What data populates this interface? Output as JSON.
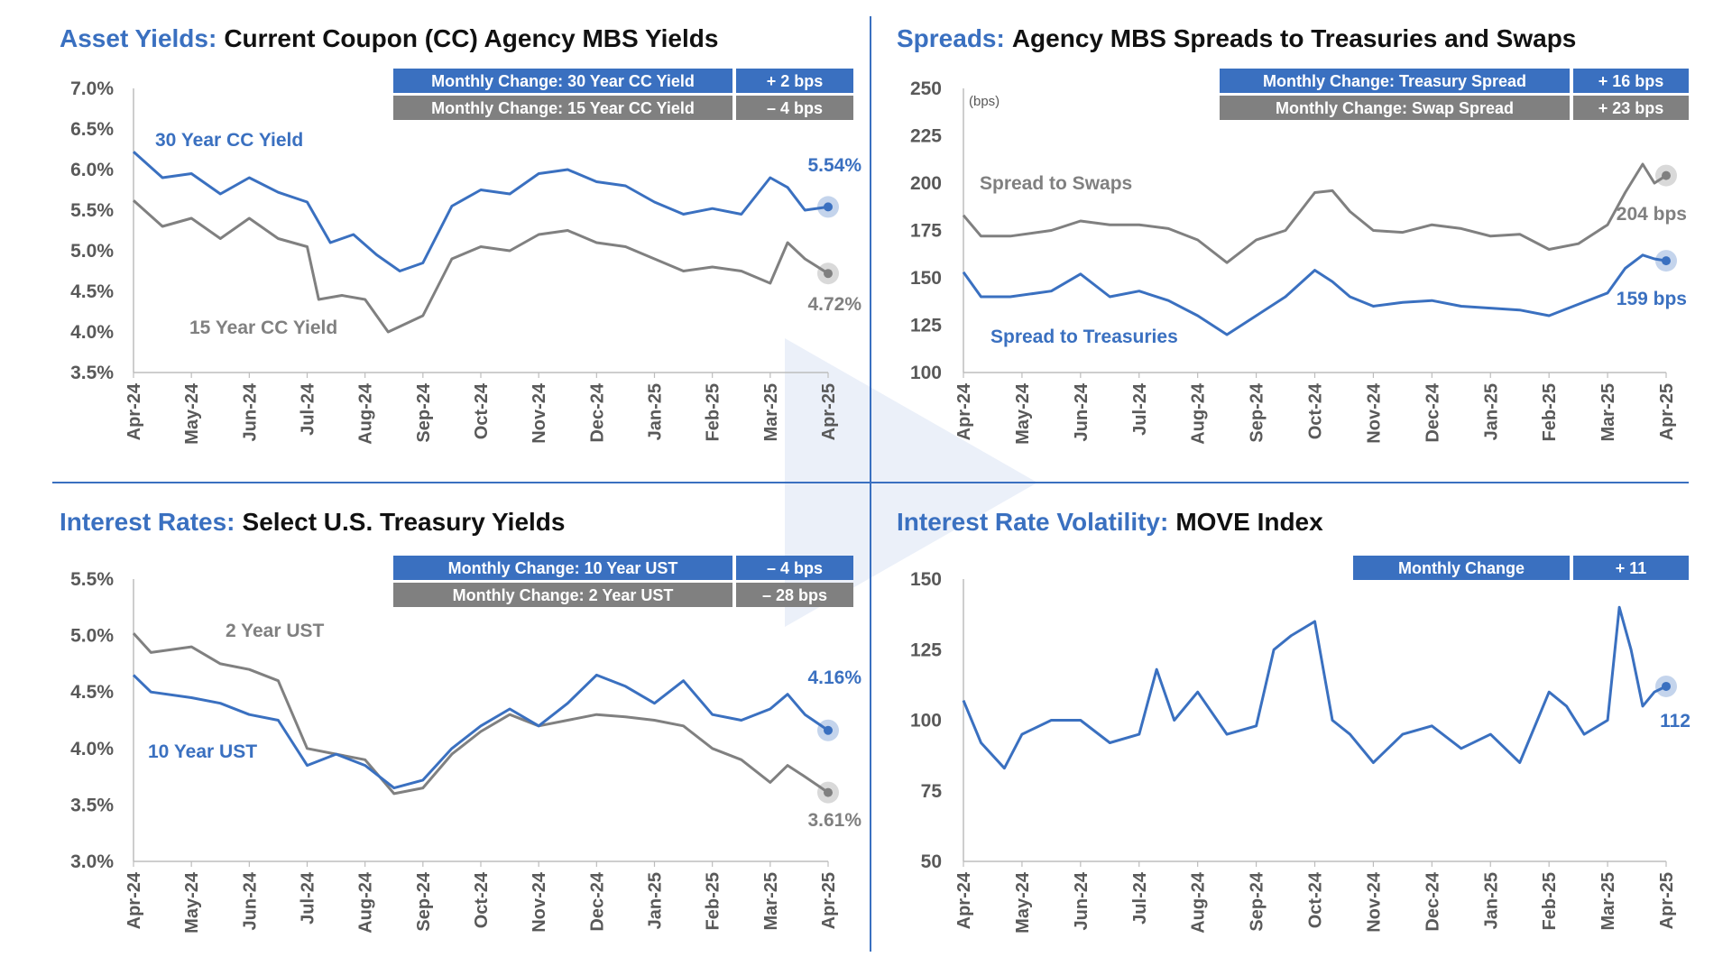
{
  "colors": {
    "blue": "#3A70C0",
    "gray": "#808080",
    "axis": "#bdbdbd",
    "tick_text": "#595959",
    "title_blue": "#3A70C0",
    "title_dark": "#111111"
  },
  "chart_data": [
    {
      "type": "line",
      "title_prefix": "Asset Yields:",
      "title": "Current Coupon (CC) Agency MBS Yields",
      "unit_note": "",
      "y_ticks": [
        "7.0%",
        "6.5%",
        "6.0%",
        "5.5%",
        "5.0%",
        "4.5%",
        "4.0%",
        "3.5%"
      ],
      "ylim": [
        3.5,
        7.0
      ],
      "x_ticks": [
        "Apr-24",
        "May-24",
        "Jun-24",
        "Jul-24",
        "Aug-24",
        "Sep-24",
        "Oct-24",
        "Nov-24",
        "Dec-24",
        "Jan-25",
        "Feb-25",
        "Mar-25",
        "Apr-25"
      ],
      "change_table": [
        {
          "label": "Monthly Change: 30 Year CC Yield",
          "value": "+ 2 bps",
          "color": "blue"
        },
        {
          "label": "Monthly Change: 15 Year CC Yield",
          "value": "– 4 bps",
          "color": "gray"
        }
      ],
      "series": [
        {
          "name": "30 Year CC Yield",
          "color": "blue",
          "end_label": "5.54%",
          "x": [
            0,
            0.5,
            1,
            1.5,
            2,
            2.5,
            3,
            3.4,
            3.8,
            4.2,
            4.6,
            5,
            5.5,
            6,
            6.5,
            7,
            7.5,
            8,
            8.5,
            9,
            9.5,
            10,
            10.5,
            11,
            11.3,
            11.6,
            12
          ],
          "values": [
            6.22,
            5.9,
            5.95,
            5.7,
            5.9,
            5.72,
            5.6,
            5.1,
            5.2,
            4.95,
            4.75,
            4.85,
            5.55,
            5.75,
            5.7,
            5.95,
            6.0,
            5.85,
            5.8,
            5.6,
            5.45,
            5.52,
            5.45,
            5.9,
            5.78,
            5.5,
            5.54
          ]
        },
        {
          "name": "15 Year CC Yield",
          "color": "gray",
          "end_label": "4.72%",
          "x": [
            0,
            0.5,
            1,
            1.5,
            2,
            2.5,
            3,
            3.2,
            3.6,
            4,
            4.4,
            4.7,
            5,
            5.5,
            6,
            6.5,
            7,
            7.5,
            8,
            8.5,
            9,
            9.5,
            10,
            10.5,
            11,
            11.3,
            11.6,
            12
          ],
          "values": [
            5.62,
            5.3,
            5.4,
            5.15,
            5.4,
            5.15,
            5.05,
            4.4,
            4.45,
            4.4,
            4.0,
            4.1,
            4.2,
            4.9,
            5.05,
            5.0,
            5.2,
            5.25,
            5.1,
            5.05,
            4.9,
            4.75,
            4.8,
            4.75,
            4.6,
            5.1,
            4.9,
            4.72
          ]
        }
      ]
    },
    {
      "type": "line",
      "title_prefix": "Spreads:",
      "title": "Agency MBS Spreads to Treasuries and Swaps",
      "unit_note": "(bps)",
      "y_ticks": [
        "250",
        "225",
        "200",
        "175",
        "150",
        "125",
        "100"
      ],
      "ylim": [
        100,
        250
      ],
      "x_ticks": [
        "Apr-24",
        "May-24",
        "Jun-24",
        "Jul-24",
        "Aug-24",
        "Sep-24",
        "Oct-24",
        "Nov-24",
        "Dec-24",
        "Jan-25",
        "Feb-25",
        "Mar-25",
        "Apr-25"
      ],
      "change_table": [
        {
          "label": "Monthly Change: Treasury Spread",
          "value": "+ 16 bps",
          "color": "blue"
        },
        {
          "label": "Monthly Change: Swap Spread",
          "value": "+ 23 bps",
          "color": "gray"
        }
      ],
      "series": [
        {
          "name": "Spread to Swaps",
          "color": "gray",
          "end_label": "204 bps",
          "x": [
            0,
            0.3,
            0.8,
            1.5,
            2,
            2.5,
            3,
            3.5,
            4,
            4.5,
            5,
            5.5,
            6,
            6.3,
            6.6,
            7,
            7.5,
            8,
            8.5,
            9,
            9.5,
            10,
            10.5,
            11,
            11.3,
            11.6,
            11.8,
            12
          ],
          "values": [
            183,
            172,
            172,
            175,
            180,
            178,
            178,
            176,
            170,
            158,
            170,
            175,
            195,
            196,
            185,
            175,
            174,
            178,
            176,
            172,
            173,
            165,
            168,
            178,
            195,
            210,
            200,
            204
          ]
        },
        {
          "name": "Spread to Treasuries",
          "color": "blue",
          "end_label": "159 bps",
          "x": [
            0,
            0.3,
            0.8,
            1.5,
            2,
            2.5,
            3,
            3.5,
            4,
            4.5,
            5,
            5.5,
            6,
            6.3,
            6.6,
            7,
            7.5,
            8,
            8.5,
            9,
            9.5,
            10,
            10.5,
            11,
            11.3,
            11.6,
            11.8,
            12
          ],
          "values": [
            153,
            140,
            140,
            143,
            152,
            140,
            143,
            138,
            130,
            120,
            130,
            140,
            154,
            148,
            140,
            135,
            137,
            138,
            135,
            134,
            133,
            130,
            136,
            142,
            155,
            162,
            160,
            159
          ]
        }
      ]
    },
    {
      "type": "line",
      "title_prefix": "Interest Rates:",
      "title": "Select U.S. Treasury Yields",
      "unit_note": "",
      "y_ticks": [
        "5.5%",
        "5.0%",
        "4.5%",
        "4.0%",
        "3.5%",
        "3.0%"
      ],
      "ylim": [
        3.0,
        5.5
      ],
      "x_ticks": [
        "Apr-24",
        "May-24",
        "Jun-24",
        "Jul-24",
        "Aug-24",
        "Sep-24",
        "Oct-24",
        "Nov-24",
        "Dec-24",
        "Jan-25",
        "Feb-25",
        "Mar-25",
        "Apr-25"
      ],
      "change_table": [
        {
          "label": "Monthly Change: 10 Year UST",
          "value": "– 4 bps",
          "color": "blue"
        },
        {
          "label": "Monthly Change: 2 Year UST",
          "value": "– 28 bps",
          "color": "gray"
        }
      ],
      "series": [
        {
          "name": "2 Year UST",
          "color": "gray",
          "end_label": "3.61%",
          "x": [
            0,
            0.3,
            1,
            1.5,
            2,
            2.5,
            3,
            3.5,
            4,
            4.5,
            5,
            5.5,
            6,
            6.5,
            7,
            7.5,
            8,
            8.5,
            9,
            9.5,
            10,
            10.5,
            11,
            11.3,
            11.6,
            12
          ],
          "values": [
            5.02,
            4.85,
            4.9,
            4.75,
            4.7,
            4.6,
            4.0,
            3.95,
            3.9,
            3.6,
            3.65,
            3.95,
            4.15,
            4.3,
            4.2,
            4.25,
            4.3,
            4.28,
            4.25,
            4.2,
            4.0,
            3.9,
            3.7,
            3.85,
            3.75,
            3.61
          ]
        },
        {
          "name": "10 Year UST",
          "color": "blue",
          "end_label": "4.16%",
          "x": [
            0,
            0.3,
            1,
            1.5,
            2,
            2.5,
            3,
            3.5,
            4,
            4.5,
            5,
            5.5,
            6,
            6.5,
            7,
            7.5,
            8,
            8.5,
            9,
            9.5,
            10,
            10.5,
            11,
            11.3,
            11.6,
            12
          ],
          "values": [
            4.65,
            4.5,
            4.45,
            4.4,
            4.3,
            4.25,
            3.85,
            3.95,
            3.85,
            3.65,
            3.72,
            4.0,
            4.2,
            4.35,
            4.2,
            4.4,
            4.65,
            4.55,
            4.4,
            4.6,
            4.3,
            4.25,
            4.35,
            4.48,
            4.3,
            4.16
          ]
        }
      ]
    },
    {
      "type": "line",
      "title_prefix": "Interest Rate Volatility:",
      "title": "MOVE Index",
      "unit_note": "",
      "y_ticks": [
        "150",
        "125",
        "100",
        "75",
        "50"
      ],
      "ylim": [
        50,
        150
      ],
      "x_ticks": [
        "Apr-24",
        "May-24",
        "Jun-24",
        "Jul-24",
        "Aug-24",
        "Sep-24",
        "Oct-24",
        "Nov-24",
        "Dec-24",
        "Jan-25",
        "Feb-25",
        "Mar-25",
        "Apr-25"
      ],
      "change_table": [
        {
          "label": "Monthly Change",
          "value": "+ 11",
          "color": "blue"
        }
      ],
      "series": [
        {
          "name": "",
          "color": "blue",
          "end_label": "112",
          "x": [
            0,
            0.3,
            0.7,
            1,
            1.5,
            2,
            2.5,
            3,
            3.3,
            3.6,
            4,
            4.5,
            5,
            5.3,
            5.6,
            6,
            6.3,
            6.6,
            7,
            7.5,
            8,
            8.5,
            9,
            9.5,
            10,
            10.3,
            10.6,
            11,
            11.2,
            11.4,
            11.6,
            11.8,
            12
          ],
          "values": [
            107,
            92,
            83,
            95,
            100,
            100,
            92,
            95,
            118,
            100,
            110,
            95,
            98,
            125,
            130,
            135,
            100,
            95,
            85,
            95,
            98,
            90,
            95,
            85,
            110,
            105,
            95,
            100,
            140,
            125,
            105,
            110,
            112
          ]
        }
      ]
    }
  ]
}
